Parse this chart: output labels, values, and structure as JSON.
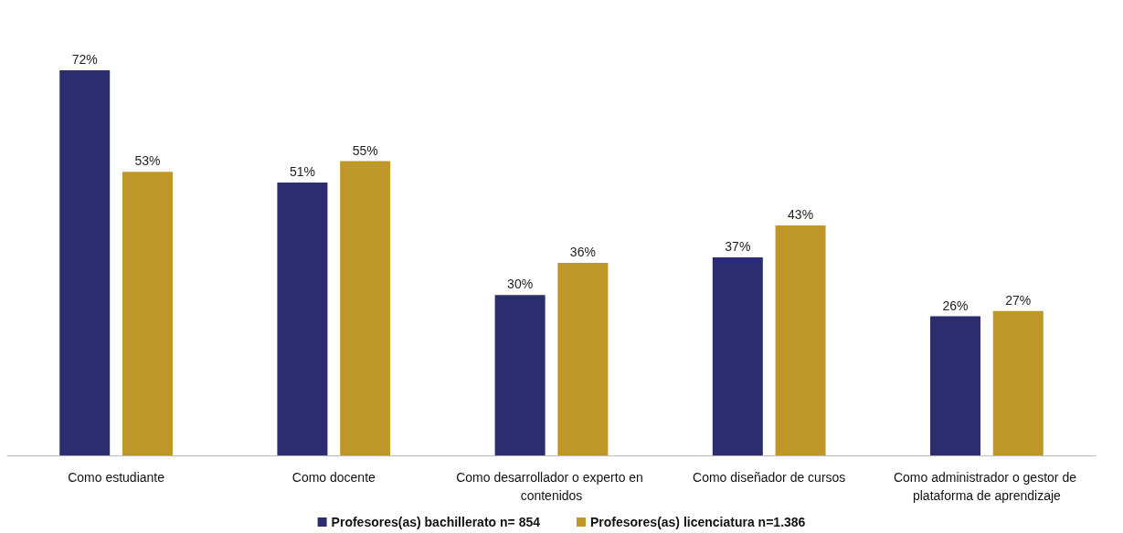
{
  "chart_data": {
    "type": "bar",
    "categories": [
      "Como estudiante",
      "Como docente",
      "Como desarrollador o experto en contenidos",
      "Como diseñador de cursos",
      "Como administrador o gestor de plataforma de aprendizaje"
    ],
    "series": [
      {
        "name": "Profesores(as) bachillerato n= 854",
        "color": "#2b2d6e",
        "values": [
          72,
          51,
          30,
          37,
          26
        ],
        "value_labels": [
          "72%",
          "51%",
          "30%",
          "37%",
          "26%"
        ]
      },
      {
        "name": "Profesores(as) licenciatura n=1.386",
        "color": "#bf9628",
        "values": [
          53,
          55,
          36,
          43,
          27
        ],
        "value_labels": [
          "53%",
          "55%",
          "36%",
          "43%",
          "27%"
        ]
      }
    ],
    "legend": "bottom",
    "tick_labels": "x"
  }
}
